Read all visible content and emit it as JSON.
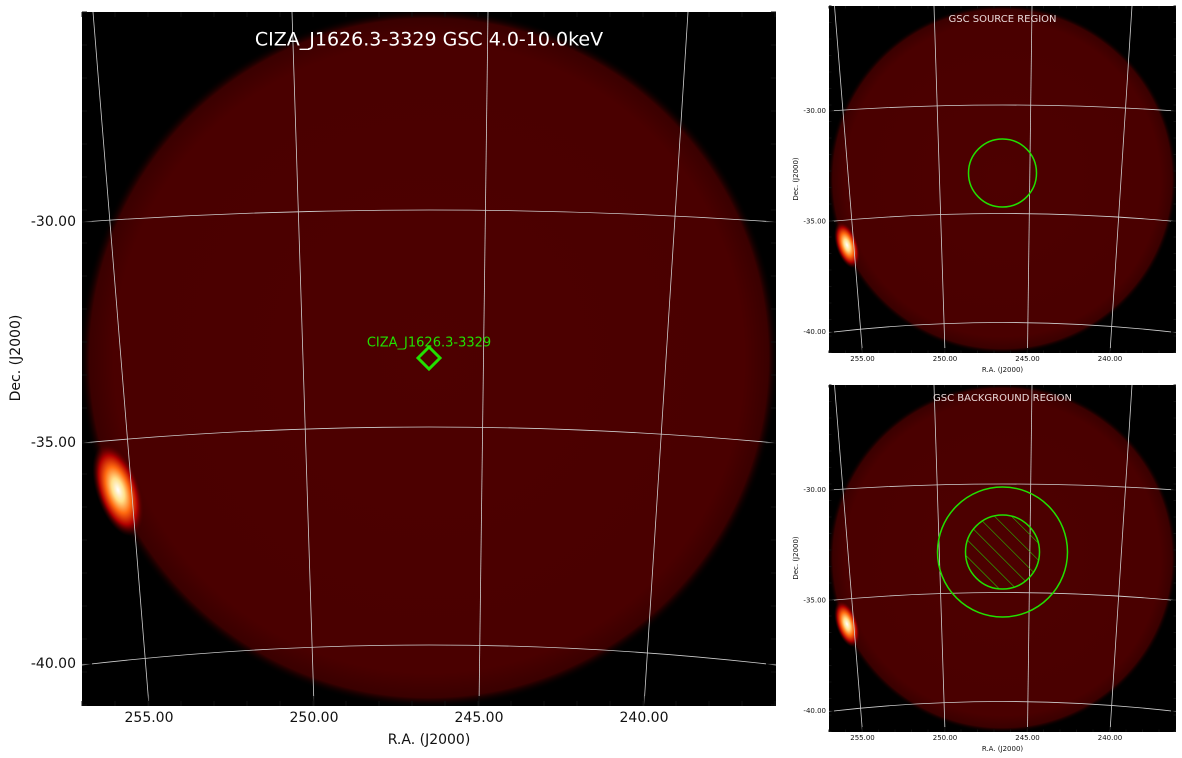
{
  "main": {
    "title": "CIZA_J1626.3-3329 GSC 4.0-10.0keV",
    "source_label": "CIZA_J1626.3-3329",
    "xlabel": "R.A. (J2000)",
    "ylabel": "Dec. (J2000)",
    "xticks": [
      "255.00",
      "250.00",
      "245.00",
      "240.00"
    ],
    "yticks": [
      "-30.00",
      "-35.00",
      "-40.00"
    ]
  },
  "source_panel": {
    "title": "GSC SOURCE REGION",
    "xlabel": "R.A. (J2000)",
    "ylabel": "Dec. (J2000)",
    "xticks": [
      "255.00",
      "250.00",
      "245.00",
      "240.00"
    ],
    "yticks": [
      "-30.00",
      "-35.00",
      "-40.00"
    ]
  },
  "background_panel": {
    "title": "GSC BACKGROUND REGION",
    "xlabel": "R.A. (J2000)",
    "ylabel": "Dec. (J2000)",
    "xticks": [
      "255.00",
      "250.00",
      "245.00",
      "240.00"
    ],
    "yticks": [
      "-30.00",
      "-35.00",
      "-40.00"
    ]
  }
}
